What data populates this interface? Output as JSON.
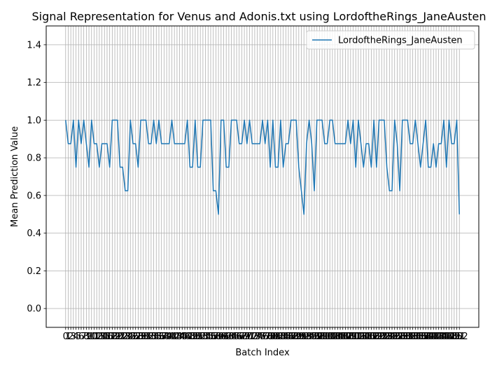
{
  "chart_data": {
    "type": "line",
    "title": "Signal Representation for Venus and Adonis.txt using LordoftheRings_JaneAusten",
    "xlabel": "Batch Index",
    "ylabel": "Mean Prediction Value",
    "ylim": [
      -0.1,
      1.5
    ],
    "xlim": [
      -7.5,
      159.5
    ],
    "yticks": [
      0.0,
      0.2,
      0.4,
      0.6,
      0.8,
      1.0,
      1.2,
      1.4
    ],
    "grid": true,
    "legend_position": "top-right",
    "series": [
      {
        "name": "LordoftheRings_JaneAusten",
        "color": "#1f77b4",
        "x": [
          0,
          1,
          2,
          3,
          4,
          5,
          6,
          7,
          8,
          9,
          10,
          11,
          12,
          13,
          14,
          15,
          16,
          17,
          18,
          19,
          20,
          21,
          22,
          23,
          24,
          25,
          26,
          27,
          28,
          29,
          30,
          31,
          32,
          33,
          34,
          35,
          36,
          37,
          38,
          39,
          40,
          41,
          42,
          43,
          44,
          45,
          46,
          47,
          48,
          49,
          50,
          51,
          52,
          53,
          54,
          55,
          56,
          57,
          58,
          59,
          60,
          61,
          62,
          63,
          64,
          65,
          66,
          67,
          68,
          69,
          70,
          71,
          72,
          73,
          74,
          75,
          76,
          77,
          78,
          79,
          80,
          81,
          82,
          83,
          84,
          85,
          86,
          87,
          88,
          89,
          90,
          91,
          92,
          93,
          94,
          95,
          96,
          97,
          98,
          99,
          100,
          101,
          102,
          103,
          104,
          105,
          106,
          107,
          108,
          109,
          110,
          111,
          112,
          113,
          114,
          115,
          116,
          117,
          118,
          119,
          120,
          121,
          122,
          123,
          124,
          125,
          126,
          127,
          128,
          129,
          130,
          131,
          132,
          133,
          134,
          135,
          136,
          137,
          138,
          139,
          140,
          141,
          142,
          143,
          144,
          145,
          146,
          147,
          148,
          149,
          150,
          151,
          152
        ],
        "values": [
          1.0,
          0.875,
          0.875,
          1.0,
          0.75,
          1.0,
          0.875,
          1.0,
          0.875,
          0.75,
          1.0,
          0.875,
          0.875,
          0.75,
          0.875,
          0.875,
          0.875,
          0.75,
          1.0,
          1.0,
          1.0,
          0.75,
          0.75,
          0.625,
          0.625,
          1.0,
          0.875,
          0.875,
          0.75,
          1.0,
          1.0,
          1.0,
          0.875,
          0.875,
          1.0,
          0.875,
          1.0,
          0.875,
          0.875,
          0.875,
          0.875,
          1.0,
          0.875,
          0.875,
          0.875,
          0.875,
          0.875,
          1.0,
          0.75,
          0.75,
          1.0,
          0.75,
          0.75,
          1.0,
          1.0,
          1.0,
          1.0,
          0.625,
          0.625,
          0.5,
          1.0,
          1.0,
          0.75,
          0.75,
          1.0,
          1.0,
          1.0,
          0.875,
          0.875,
          1.0,
          0.875,
          1.0,
          0.875,
          0.875,
          0.875,
          0.875,
          1.0,
          0.875,
          1.0,
          0.75,
          1.0,
          0.75,
          0.75,
          1.0,
          0.75,
          0.875,
          0.875,
          1.0,
          1.0,
          1.0,
          0.75,
          0.625,
          0.5,
          0.875,
          1.0,
          0.875,
          0.625,
          1.0,
          1.0,
          1.0,
          0.875,
          0.875,
          1.0,
          1.0,
          0.875,
          0.875,
          0.875,
          0.875,
          0.875,
          1.0,
          0.875,
          1.0,
          0.75,
          1.0,
          0.875,
          0.75,
          0.875,
          0.875,
          0.75,
          1.0,
          0.75,
          1.0,
          1.0,
          1.0,
          0.75,
          0.625,
          0.625,
          1.0,
          0.875,
          0.625,
          1.0,
          1.0,
          1.0,
          0.875,
          0.875,
          1.0,
          0.875,
          0.75,
          0.875,
          1.0,
          0.75,
          0.75,
          0.875,
          0.75,
          0.875,
          0.875,
          1.0,
          0.75,
          1.0,
          0.875,
          0.875,
          1.0,
          0.5
        ]
      }
    ]
  }
}
